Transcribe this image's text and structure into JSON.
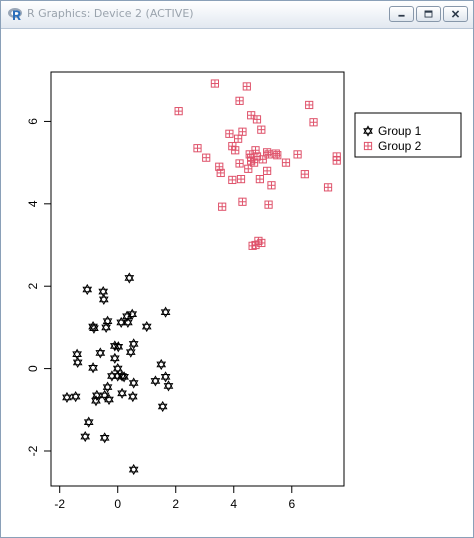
{
  "window": {
    "title": "R Graphics: Device 2 (ACTIVE)",
    "buttons": [
      "minimize",
      "maximize",
      "close"
    ]
  },
  "chart_data": {
    "type": "scatter",
    "title": "",
    "xlabel": "",
    "ylabel": "",
    "xlim": [
      -2.3,
      7.8
    ],
    "ylim": [
      -2.85,
      7.2
    ],
    "x_ticks": [
      -2,
      0,
      2,
      4,
      6
    ],
    "y_ticks": [
      -2,
      0,
      2,
      4,
      6
    ],
    "x_tick_labels": [
      "-2",
      "0",
      "2",
      "4",
      "6"
    ],
    "y_tick_labels": [
      "-2",
      "0",
      "2",
      "4",
      "6"
    ],
    "grid": false,
    "legend_position": "top-right",
    "series": [
      {
        "name": "Group 1",
        "color": "#000000",
        "marker": "hexagram",
        "points": [
          [
            0.4,
            2.2
          ],
          [
            -1.05,
            1.92
          ],
          [
            -0.5,
            1.87
          ],
          [
            -0.48,
            1.68
          ],
          [
            0.32,
            1.27
          ],
          [
            0.5,
            1.32
          ],
          [
            1.65,
            1.37
          ],
          [
            -0.35,
            1.15
          ],
          [
            0.12,
            1.12
          ],
          [
            0.35,
            1.12
          ],
          [
            -0.85,
            1.02
          ],
          [
            -0.82,
            0.98
          ],
          [
            -0.4,
            1.0
          ],
          [
            1.0,
            1.02
          ],
          [
            -0.1,
            0.55
          ],
          [
            0.55,
            0.6
          ],
          [
            0.02,
            0.53
          ],
          [
            -0.6,
            0.38
          ],
          [
            0.45,
            0.4
          ],
          [
            -1.4,
            0.35
          ],
          [
            -1.38,
            0.15
          ],
          [
            -0.1,
            0.25
          ],
          [
            1.5,
            0.1
          ],
          [
            -0.85,
            0.02
          ],
          [
            0.0,
            0.0
          ],
          [
            -0.2,
            -0.18
          ],
          [
            0.0,
            -0.18
          ],
          [
            0.15,
            -0.18
          ],
          [
            0.22,
            -0.2
          ],
          [
            1.65,
            -0.2
          ],
          [
            1.3,
            -0.3
          ],
          [
            0.55,
            -0.35
          ],
          [
            1.75,
            -0.42
          ],
          [
            -0.35,
            -0.45
          ],
          [
            0.15,
            -0.6
          ],
          [
            -0.45,
            -0.65
          ],
          [
            -0.72,
            -0.65
          ],
          [
            0.52,
            -0.68
          ],
          [
            -1.75,
            -0.7
          ],
          [
            -1.45,
            -0.68
          ],
          [
            -0.75,
            -0.78
          ],
          [
            -0.3,
            -0.75
          ],
          [
            1.55,
            -0.92
          ],
          [
            -1.0,
            -1.3
          ],
          [
            -1.12,
            -1.65
          ],
          [
            -0.45,
            -1.68
          ],
          [
            0.55,
            -2.45
          ]
        ]
      },
      {
        "name": "Group 2",
        "color": "#df536b",
        "marker": "square-plus",
        "points": [
          [
            3.35,
            6.92
          ],
          [
            4.45,
            6.85
          ],
          [
            2.1,
            6.25
          ],
          [
            6.6,
            6.4
          ],
          [
            4.2,
            6.5
          ],
          [
            4.6,
            6.15
          ],
          [
            4.8,
            6.05
          ],
          [
            6.75,
            5.98
          ],
          [
            4.95,
            5.8
          ],
          [
            3.85,
            5.7
          ],
          [
            4.3,
            5.75
          ],
          [
            4.15,
            5.58
          ],
          [
            3.95,
            5.4
          ],
          [
            4.05,
            5.3
          ],
          [
            4.75,
            5.3
          ],
          [
            5.2,
            5.2
          ],
          [
            5.45,
            5.22
          ],
          [
            5.5,
            5.18
          ],
          [
            2.75,
            5.35
          ],
          [
            5.15,
            5.25
          ],
          [
            4.55,
            5.2
          ],
          [
            4.8,
            5.15
          ],
          [
            4.6,
            5.12
          ],
          [
            5.0,
            5.08
          ],
          [
            6.2,
            5.2
          ],
          [
            7.55,
            5.15
          ],
          [
            3.05,
            5.12
          ],
          [
            4.6,
            5.05
          ],
          [
            4.7,
            5.0
          ],
          [
            4.2,
            4.98
          ],
          [
            5.8,
            5.0
          ],
          [
            7.55,
            5.05
          ],
          [
            3.5,
            4.9
          ],
          [
            4.5,
            4.85
          ],
          [
            5.15,
            4.8
          ],
          [
            6.45,
            4.72
          ],
          [
            4.9,
            4.6
          ],
          [
            3.55,
            4.75
          ],
          [
            7.25,
            4.4
          ],
          [
            5.3,
            4.45
          ],
          [
            4.25,
            4.6
          ],
          [
            3.95,
            4.58
          ],
          [
            4.3,
            4.05
          ],
          [
            5.2,
            3.98
          ],
          [
            3.6,
            3.93
          ],
          [
            4.85,
            3.1
          ],
          [
            4.75,
            3.0
          ],
          [
            4.95,
            3.05
          ],
          [
            4.65,
            2.98
          ]
        ]
      }
    ]
  }
}
